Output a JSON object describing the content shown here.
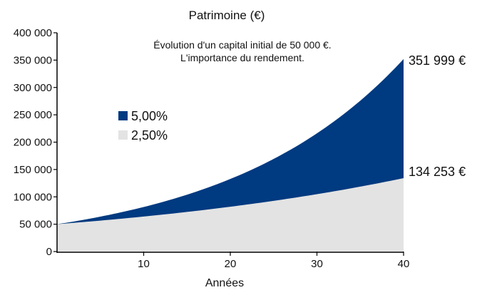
{
  "chart_data": {
    "type": "area",
    "title": "Patrimoine (€)",
    "subtitle_lines": [
      "Évolution d'un capital initial de 50 000 €.",
      "L'importance du rendement."
    ],
    "xlabel": "Années",
    "ylabel": "",
    "xlim": [
      0,
      40
    ],
    "ylim": [
      0,
      400000
    ],
    "x_ticks": [
      "10",
      "20",
      "30",
      "40"
    ],
    "x_tick_values": [
      10,
      20,
      30,
      40
    ],
    "y_ticks": [
      "0",
      "50 000",
      "100 000",
      "150 000",
      "200 000",
      "250 000",
      "300 000",
      "350 000",
      "400 000"
    ],
    "y_tick_values": [
      0,
      50000,
      100000,
      150000,
      200000,
      250000,
      300000,
      350000,
      400000
    ],
    "grid": false,
    "legend_position": "left",
    "series": [
      {
        "name": "5,00%",
        "color": "#003a80",
        "initial": 50000,
        "rate": 0.05,
        "end_label": "351 999 €"
      },
      {
        "name": "2,50%",
        "color": "#e3e3e3",
        "initial": 50000,
        "rate": 0.025,
        "end_label": "134 253 €"
      }
    ]
  }
}
